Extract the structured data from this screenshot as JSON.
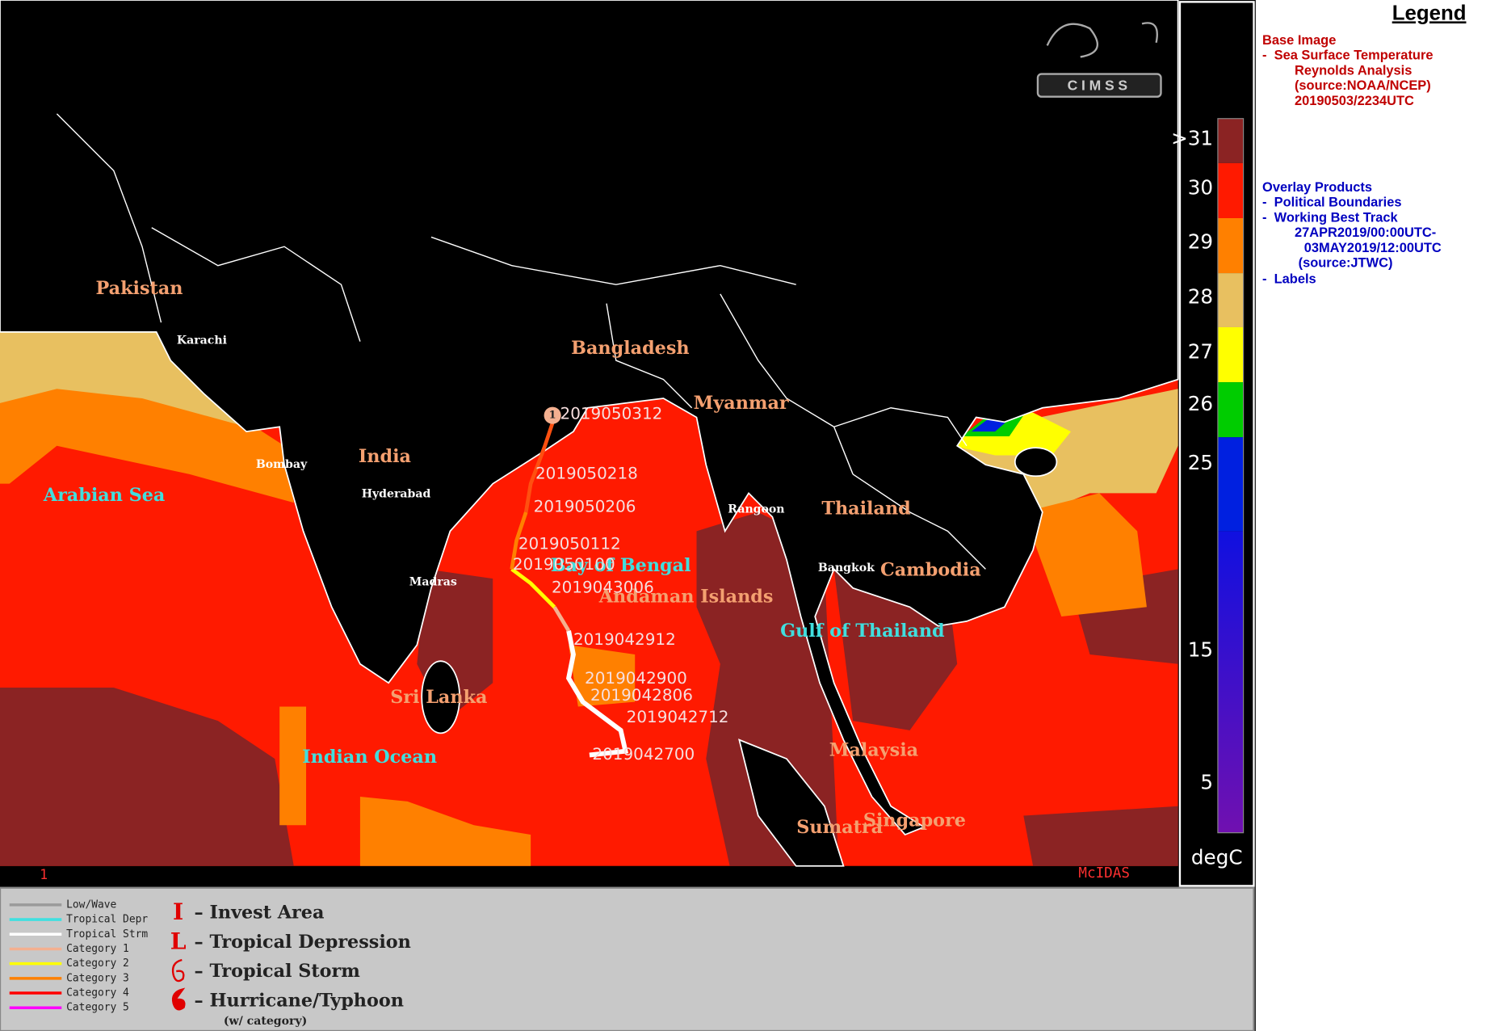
{
  "map": {
    "countries": [
      "Pakistan",
      "Bangladesh",
      "Myanmar",
      "India",
      "Thailand",
      "Cambodia",
      "Andaman Islands",
      "Sri Lanka",
      "Malaysia",
      "Sumatra",
      "Singapore"
    ],
    "cities": [
      "Karachi",
      "Bombay",
      "Hyderabad",
      "Rangoon",
      "Bangkok",
      "Madras"
    ],
    "seas": [
      "Arabian Sea",
      "Bay of Bengal",
      "Gulf of Thailand",
      "Indian Ocean"
    ],
    "track_labels": [
      "2019050312",
      "2019050218",
      "2019050206",
      "2019050112",
      "2019050100",
      "2019043006",
      "2019042912",
      "2019042900",
      "2019042806",
      "2019042712",
      "2019042700"
    ],
    "storm_category": "1",
    "frame": "1",
    "software": "McIDAS",
    "logo": "CIMSS"
  },
  "colorbar": {
    "labels": [
      ">31",
      "30",
      "29",
      "28",
      "27",
      "26",
      "25",
      "15",
      "5"
    ],
    "unit": "degC"
  },
  "legend": {
    "title": "Legend",
    "base_image": {
      "heading": "Base Image",
      "lines": [
        "-  Sea Surface Temperature",
        "Reynolds Analysis",
        "(source:NOAA/NCEP)",
        "20190503/2234UTC"
      ]
    },
    "overlay": {
      "heading": "Overlay Products",
      "lines": [
        "-  Political Boundaries",
        "-  Working Best Track",
        "27APR2019/00:00UTC-",
        "03MAY2019/12:00UTC",
        "(source:JTWC)",
        "-  Labels"
      ]
    }
  },
  "track_key": {
    "items": [
      {
        "name": "Low/Wave",
        "color": "#9a9a9a"
      },
      {
        "name": "Tropical Depr",
        "color": "#40e0e0"
      },
      {
        "name": "Tropical Strm",
        "color": "#ffffff"
      },
      {
        "name": "Category 1",
        "color": "#f4b090"
      },
      {
        "name": "Category 2",
        "color": "#ffff00"
      },
      {
        "name": "Category 3",
        "color": "#ff8000"
      },
      {
        "name": "Category 4",
        "color": "#ff0000"
      },
      {
        "name": "Category 5",
        "color": "#ff00ff"
      }
    ]
  },
  "symbol_key": {
    "items": [
      {
        "symbol": "I",
        "label": "– Invest Area"
      },
      {
        "symbol": "L",
        "label": "– Tropical Depression"
      },
      {
        "label": "– Tropical Storm"
      },
      {
        "label": "– Hurricane/Typhoon"
      }
    ],
    "note": "(w/ category)"
  }
}
